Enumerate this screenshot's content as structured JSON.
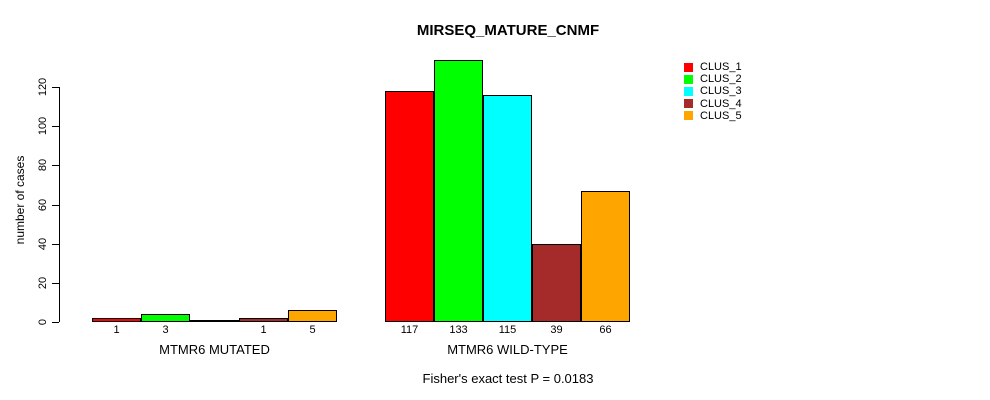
{
  "chart_data": {
    "type": "bar",
    "title": "MIRSEQ_MATURE_CNMF",
    "xlabel": "",
    "ylabel": "number of cases",
    "ylim": [
      0,
      135
    ],
    "yticks": [
      0,
      20,
      40,
      60,
      80,
      100,
      120
    ],
    "grid": false,
    "legend_position": "top-right",
    "series": [
      {
        "name": "CLUS_1",
        "color": "#FF0000"
      },
      {
        "name": "CLUS_2",
        "color": "#00FF00"
      },
      {
        "name": "CLUS_3",
        "color": "#00FFFF"
      },
      {
        "name": "CLUS_4",
        "color": "#A52A2A"
      },
      {
        "name": "CLUS_5",
        "color": "#FFA500"
      }
    ],
    "groups": [
      {
        "label": "MTMR6 MUTATED",
        "values": [
          1,
          3,
          0,
          1,
          5
        ],
        "bar_labels": [
          "1",
          "3",
          "",
          "1",
          "5"
        ]
      },
      {
        "label": "MTMR6 WILD-TYPE",
        "values": [
          117,
          133,
          115,
          39,
          66
        ],
        "bar_labels": [
          "117",
          "133",
          "115",
          "39",
          "66"
        ]
      }
    ],
    "footnote": "Fisher's exact test P = 0.0183"
  }
}
